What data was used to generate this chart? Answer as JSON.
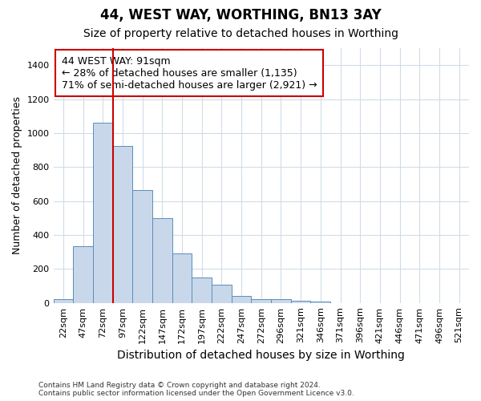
{
  "title": "44, WEST WAY, WORTHING, BN13 3AY",
  "subtitle": "Size of property relative to detached houses in Worthing",
  "xlabel": "Distribution of detached houses by size in Worthing",
  "ylabel": "Number of detached properties",
  "bar_color": "#c8d8ea",
  "bar_edge_color": "#5b8dba",
  "categories": [
    "22sqm",
    "47sqm",
    "72sqm",
    "97sqm",
    "122sqm",
    "147sqm",
    "172sqm",
    "197sqm",
    "222sqm",
    "247sqm",
    "272sqm",
    "296sqm",
    "321sqm",
    "346sqm",
    "371sqm",
    "396sqm",
    "421sqm",
    "446sqm",
    "471sqm",
    "496sqm",
    "521sqm"
  ],
  "values": [
    20,
    335,
    1060,
    925,
    665,
    500,
    290,
    150,
    105,
    40,
    22,
    20,
    15,
    10,
    0,
    0,
    0,
    0,
    0,
    0,
    0
  ],
  "ylim": [
    0,
    1500
  ],
  "yticks": [
    0,
    200,
    400,
    600,
    800,
    1000,
    1200,
    1400
  ],
  "red_line_x": 3.0,
  "annotation_text": "44 WEST WAY: 91sqm\n← 28% of detached houses are smaller (1,135)\n71% of semi-detached houses are larger (2,921) →",
  "footer": "Contains HM Land Registry data © Crown copyright and database right 2024.\nContains public sector information licensed under the Open Government Licence v3.0.",
  "background_color": "#ffffff",
  "grid_color": "#d0dce8",
  "annotation_box_color": "#ffffff",
  "annotation_box_edge": "#cc0000",
  "red_line_color": "#cc0000",
  "title_fontsize": 12,
  "subtitle_fontsize": 10,
  "ylabel_fontsize": 9,
  "xlabel_fontsize": 10,
  "tick_fontsize": 8,
  "annotation_fontsize": 9
}
